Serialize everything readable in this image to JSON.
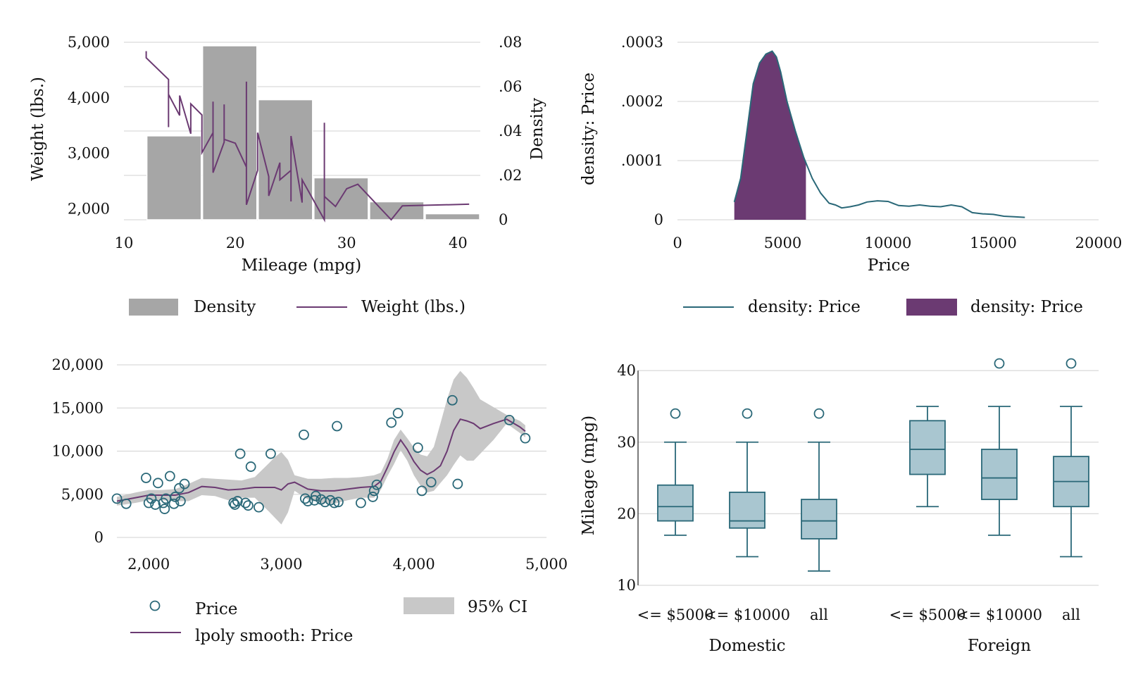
{
  "colors": {
    "purple": "#6b3a72",
    "teal": "#2a6878",
    "gray_fill": "#a6a6a6",
    "ci_fill": "#c8c8c8",
    "box_fill": "#a9c6d0"
  },
  "chart_data": [
    {
      "type": "bar+line",
      "xlabel": "Mileage (mpg)",
      "ylabel_left": "Weight (lbs.)",
      "ylabel_right": "Density",
      "x_ticks": [
        "10",
        "20",
        "30",
        "40"
      ],
      "y_left_ticks": [
        "2,000",
        "3,000",
        "4,000",
        "5,000"
      ],
      "y_right_ticks": [
        "0",
        ".02",
        ".04",
        ".06",
        ".08"
      ],
      "xlim": [
        10,
        42
      ],
      "ylim_left": [
        1800,
        5000
      ],
      "ylim_right": [
        0,
        0.08
      ],
      "histogram": {
        "name": "Density",
        "bins": [
          [
            12,
            17,
            0.0378
          ],
          [
            17,
            22,
            0.0784
          ],
          [
            22,
            27,
            0.0541
          ],
          [
            27,
            32,
            0.0189
          ],
          [
            32,
            37,
            0.0081
          ],
          [
            37,
            42,
            0.0027
          ]
        ]
      },
      "line": {
        "name": "Weight (lbs.)",
        "x": [
          12,
          12,
          14,
          14,
          14,
          15,
          15,
          16,
          16,
          17,
          17,
          18,
          18,
          18,
          19,
          19,
          19,
          20,
          20,
          21,
          21,
          21,
          22,
          22,
          23,
          23,
          24,
          24,
          25,
          25,
          25,
          26,
          26,
          28,
          28,
          28,
          29,
          30,
          31,
          34,
          35,
          41
        ],
        "y": [
          4840,
          4720,
          4330,
          3470,
          4060,
          3680,
          4040,
          3350,
          3890,
          3690,
          3010,
          3370,
          3930,
          2650,
          3200,
          3880,
          3250,
          3180,
          3180,
          2750,
          4290,
          2070,
          2690,
          3370,
          2580,
          2230,
          2830,
          2520,
          2690,
          2130,
          3310,
          2110,
          2520,
          1800,
          3550,
          2220,
          2040,
          2360,
          2440,
          1800,
          2050,
          2080
        ]
      },
      "legend": [
        "Density",
        "Weight (lbs.)"
      ]
    },
    {
      "type": "area+line",
      "xlabel": "Price",
      "ylabel": "density: Price",
      "x_ticks": [
        "0",
        "5000",
        "10000",
        "15000",
        "20000"
      ],
      "y_ticks": [
        "0",
        ".0001",
        ".0002",
        ".0003"
      ],
      "xlim": [
        0,
        20000
      ],
      "ylim": [
        0,
        0.0003
      ],
      "line": {
        "name": "density: Price",
        "x": [
          2700,
          3000,
          3300,
          3600,
          3900,
          4200,
          4500,
          4700,
          4900,
          5200,
          5600,
          6000,
          6400,
          6800,
          7200,
          7500,
          7800,
          8200,
          8600,
          9000,
          9500,
          10000,
          10500,
          11000,
          11500,
          12000,
          12500,
          13000,
          13500,
          14000,
          14500,
          15000,
          15500,
          16000,
          16500
        ],
        "y": [
          3e-05,
          7e-05,
          0.00015,
          0.00023,
          0.000265,
          0.00028,
          0.000285,
          0.000275,
          0.00025,
          0.0002,
          0.00015,
          0.000105,
          7e-05,
          4.5e-05,
          2.8e-05,
          2.5e-05,
          2e-05,
          2.2e-05,
          2.5e-05,
          3e-05,
          3.2e-05,
          3.1e-05,
          2.4e-05,
          2.3e-05,
          2.5e-05,
          2.3e-05,
          2.2e-05,
          2.5e-05,
          2.2e-05,
          1.2e-05,
          1e-05,
          9e-06,
          6e-06,
          5e-06,
          4e-06
        ]
      },
      "area": {
        "name": "density: Price",
        "x_range": [
          2700,
          6100
        ]
      },
      "legend": [
        "density: Price",
        "density: Price"
      ]
    },
    {
      "type": "scatter+line",
      "x_ticks": [
        "2,000",
        "3,000",
        "4,000",
        "5,000"
      ],
      "y_ticks": [
        "0",
        "5,000",
        "10,000",
        "15,000",
        "20,000"
      ],
      "xlim": [
        1760,
        5000
      ],
      "ylim": [
        0,
        20000
      ],
      "scatter": {
        "name": "Price",
        "x": [
          1760,
          1830,
          1980,
          2000,
          2020,
          2050,
          2070,
          2110,
          2120,
          2130,
          2160,
          2190,
          2200,
          2230,
          2240,
          2270,
          2640,
          2650,
          2670,
          2690,
          2730,
          2750,
          2770,
          2830,
          2920,
          3170,
          3180,
          3200,
          3250,
          3260,
          3300,
          3330,
          3370,
          3400,
          3420,
          3430,
          3600,
          3690,
          3700,
          3720,
          3830,
          3880,
          4030,
          4060,
          4130,
          4290,
          4330,
          4720,
          4840
        ],
        "y": [
          4500,
          3900,
          6900,
          4000,
          4500,
          3800,
          6300,
          4000,
          3300,
          4500,
          7100,
          3900,
          4700,
          5700,
          4200,
          6200,
          4000,
          3800,
          4200,
          9700,
          4000,
          3700,
          8200,
          3500,
          9700,
          11900,
          4500,
          4200,
          4300,
          4800,
          4400,
          4100,
          4300,
          4000,
          12900,
          4100,
          4000,
          4700,
          5400,
          6100,
          13300,
          14400,
          10400,
          5400,
          6400,
          15900,
          6200,
          13600,
          11500
        ]
      },
      "smooth": {
        "name": "lpoly smooth: Price",
        "x": [
          1760,
          1900,
          2000,
          2100,
          2200,
          2300,
          2400,
          2500,
          2600,
          2700,
          2800,
          2900,
          2950,
          3000,
          3050,
          3100,
          3200,
          3300,
          3400,
          3500,
          3600,
          3700,
          3750,
          3800,
          3850,
          3900,
          3950,
          4000,
          4050,
          4100,
          4150,
          4200,
          4250,
          4300,
          4350,
          4400,
          4450,
          4500,
          4600,
          4700,
          4800,
          4840
        ],
        "y": [
          4200,
          4600,
          4900,
          4900,
          4900,
          5200,
          5900,
          5800,
          5500,
          5600,
          5800,
          5800,
          5800,
          5500,
          6200,
          6400,
          5600,
          5400,
          5400,
          5600,
          5800,
          5900,
          6500,
          8100,
          9900,
          11300,
          10200,
          8800,
          7800,
          7300,
          7700,
          8300,
          10000,
          12400,
          13700,
          13500,
          13200,
          12600,
          13200,
          13700,
          12800,
          12300
        ]
      },
      "ci": {
        "name": "95% CI",
        "upper": [
          4700,
          5200,
          5500,
          5500,
          5600,
          6200,
          6900,
          6800,
          6700,
          6600,
          7000,
          8500,
          9300,
          9900,
          9000,
          7200,
          6800,
          6800,
          6900,
          6900,
          7000,
          7200,
          7500,
          9100,
          11300,
          12500,
          11500,
          10400,
          9600,
          9400,
          10500,
          13200,
          16000,
          18300,
          19300,
          18500,
          17300,
          16000,
          15100,
          14200,
          13500,
          13000
        ],
        "lower": [
          3700,
          4000,
          4300,
          4300,
          4200,
          4200,
          4900,
          4800,
          4300,
          4600,
          4600,
          3100,
          2300,
          1500,
          2900,
          5400,
          4400,
          4000,
          3900,
          4300,
          4600,
          4600,
          5500,
          7100,
          8500,
          10100,
          8900,
          7200,
          6000,
          5200,
          5400,
          6300,
          7200,
          8400,
          9500,
          8900,
          8900,
          9700,
          11300,
          13200,
          12100,
          11600
        ]
      },
      "legend": [
        "Price",
        "95% CI",
        "lpoly smooth: Price"
      ]
    },
    {
      "type": "box",
      "ylabel": "Mileage (mpg)",
      "y_ticks": [
        "10",
        "20",
        "30",
        "40"
      ],
      "ylim": [
        10,
        41
      ],
      "groups": [
        "Domestic",
        "Foreign"
      ],
      "categories": [
        "<= $5000",
        "<= $10000",
        "all"
      ],
      "boxes": [
        {
          "group": "Domestic",
          "category": "<= $5000",
          "min": 17,
          "q1": 19,
          "median": 21,
          "q3": 24,
          "max": 30,
          "outliers": [
            34
          ]
        },
        {
          "group": "Domestic",
          "category": "<= $10000",
          "min": 14,
          "q1": 18,
          "median": 19,
          "q3": 23,
          "max": 30,
          "outliers": [
            34
          ]
        },
        {
          "group": "Domestic",
          "category": "all",
          "min": 12,
          "q1": 16.5,
          "median": 19,
          "q3": 22,
          "max": 30,
          "outliers": [
            34
          ]
        },
        {
          "group": "Foreign",
          "category": "<= $5000",
          "min": 21,
          "q1": 25.5,
          "median": 29,
          "q3": 33,
          "max": 35,
          "outliers": []
        },
        {
          "group": "Foreign",
          "category": "<= $10000",
          "min": 17,
          "q1": 22,
          "median": 25,
          "q3": 29,
          "max": 35,
          "outliers": [
            41
          ]
        },
        {
          "group": "Foreign",
          "category": "all",
          "min": 14,
          "q1": 21,
          "median": 24.5,
          "q3": 28,
          "max": 35,
          "outliers": [
            41
          ]
        }
      ]
    }
  ]
}
